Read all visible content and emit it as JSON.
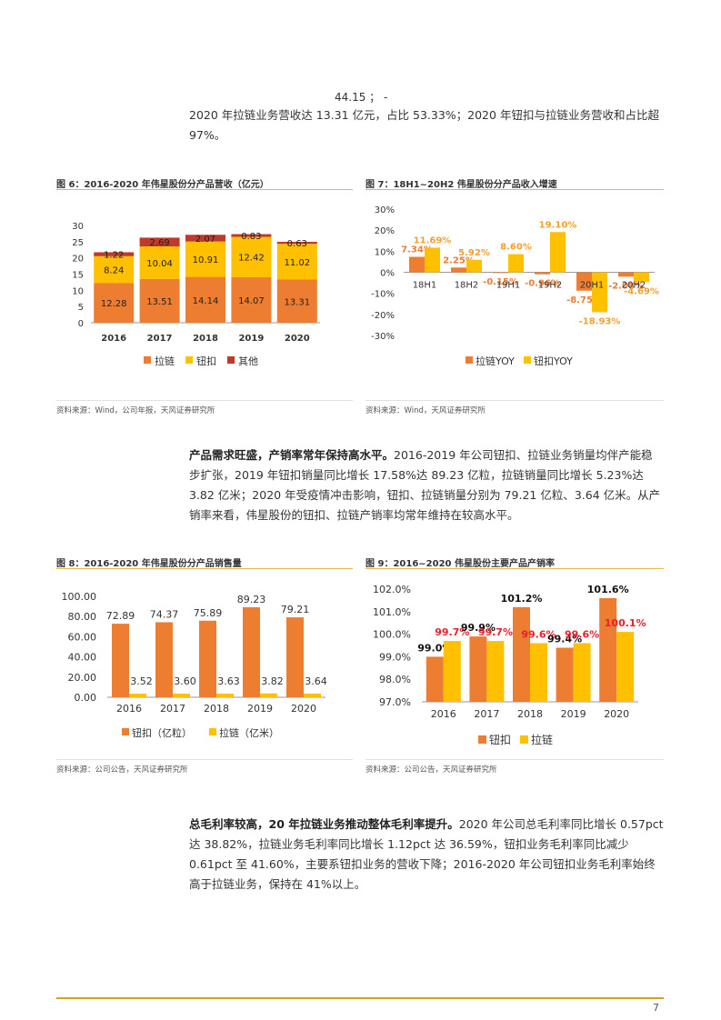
{
  "top_fragment": "44.15 ；    -",
  "intro_text": "2020 年拉链业务营收达 13.31 亿元，占比 53.33%；2020 年钮扣与拉链业务营收和占比超 97%。",
  "section2": {
    "bold": "产品需求旺盛，产销率常年保持高水平。",
    "text": "2016-2019 年公司钮扣、拉链业务销量均伴产能稳步扩张，2019 年钮扣销量同比增长 17.58%达 89.23 亿粒，拉链销量同比增长 5.23%达 3.82 亿米；2020 年受疫情冲击影响，钮扣、拉链销量分别为 79.21 亿粒、3.64 亿米。从产销率来看，伟星股份的钮扣、拉链产销率均常年维持在较高水平。"
  },
  "section3": {
    "bold": "总毛利率较高，20 年拉链业务推动整体毛利率提升。",
    "text": "2020 年公司总毛利率同比增长 0.57pct 达 38.82%，拉链业务毛利率同比增长 1.12pct 达 36.59%，钮扣业务毛利率同比减少 0.61pct 至 41.60%，主要系钮扣业务的营收下降；2016-2020 年公司钮扣业务毛利率始终高于拉链业务，保持在 41%以上。"
  },
  "colors": {
    "orange": "#ED7D31",
    "yellow": "#FFC000",
    "red": "#C0392B",
    "gold_line": "#E8B74A"
  },
  "figures": [
    {
      "title": "图 6：2016-2020 年伟星股份分产品营收（亿元）",
      "source": "资料来源：Wind，公司年报，天风证券研究所",
      "chart_data": {
        "type": "bar",
        "stacked": true,
        "categories": [
          "2016",
          "2017",
          "2018",
          "2019",
          "2020"
        ],
        "series": [
          {
            "name": "拉链",
            "values": [
              12.28,
              13.51,
              14.14,
              14.07,
              13.31
            ],
            "labels": [
              "12.28",
              "13.51",
              "14.14",
              "14.07",
              "13.31"
            ]
          },
          {
            "name": "钮扣",
            "values": [
              8.24,
              10.04,
              10.91,
              12.42,
              11.02
            ],
            "labels": [
              "8.24",
              "10.04",
              "10.91",
              "12.42",
              "11.02"
            ]
          },
          {
            "name": "其他",
            "values": [
              1.22,
              2.69,
              2.07,
              0.83,
              0.63
            ],
            "labels": [
              "1.22",
              "2.69",
              "2.07",
              "0.83",
              "0.63"
            ]
          }
        ],
        "yticks": [
          "0",
          "5",
          "10",
          "15",
          "20",
          "25",
          "30"
        ],
        "ylim": [
          0,
          30
        ],
        "legend_position": "bottom"
      }
    },
    {
      "title": "图 7：18H1~20H2 伟星股份分产品收入增速",
      "source": "资料来源：Wind，天风证券研究所",
      "chart_data": {
        "type": "bar",
        "categories": [
          "18H1",
          "18H2",
          "19H1",
          "19H2",
          "20H1",
          "20H2"
        ],
        "series": [
          {
            "name": "拉链YOY",
            "values": [
              7.34,
              2.25,
              -0.15,
              -0.96,
              -8.75,
              -2.08
            ],
            "labels": [
              "7.34%",
              "2.25%",
              "-0.15%",
              "-0.96%",
              "-8.75%",
              "-2.08%"
            ]
          },
          {
            "name": "钮扣YOY",
            "values": [
              11.69,
              5.92,
              8.6,
              19.1,
              -18.93,
              -4.69
            ],
            "labels": [
              "11.69%",
              "5.92%",
              "8.60%",
              "19.10%",
              "-18.93%",
              "-4.69%"
            ]
          }
        ],
        "yticks": [
          "30%",
          "20%",
          "10%",
          "0%",
          "-10%",
          "-20%",
          "-30%"
        ],
        "ylim": [
          -30,
          30
        ],
        "legend_position": "bottom"
      }
    },
    {
      "title": "图 8：2016-2020 年伟星股份分产品销售量",
      "source": "资料来源：公司公告，天风证券研究所",
      "chart_data": {
        "type": "bar",
        "categories": [
          "2016",
          "2017",
          "2018",
          "2019",
          "2020"
        ],
        "series": [
          {
            "name": "钮扣（亿粒）",
            "values": [
              72.89,
              74.37,
              75.89,
              89.23,
              79.21
            ],
            "labels": [
              "72.89",
              "74.37",
              "75.89",
              "89.23",
              "79.21"
            ]
          },
          {
            "name": "拉链（亿米）",
            "values": [
              3.52,
              3.6,
              3.63,
              3.82,
              3.64
            ],
            "labels": [
              "3.52",
              "3.60",
              "3.63",
              "3.82",
              "3.64"
            ]
          }
        ],
        "yticks": [
          "0.00",
          "20.00",
          "40.00",
          "60.00",
          "80.00",
          "100.00"
        ],
        "ylim": [
          0,
          100
        ],
        "legend_position": "bottom"
      }
    },
    {
      "title": "图 9：2016~2020 伟星股份主要产品产销率",
      "source": "资料来源：公司公告，天风证券研究所",
      "chart_data": {
        "type": "bar",
        "categories": [
          "2016",
          "2017",
          "2018",
          "2019",
          "2020"
        ],
        "series": [
          {
            "name": "钮扣",
            "values": [
              99.0,
              99.9,
              101.2,
              99.4,
              101.6
            ],
            "labels": [
              "99.0%",
              "99.9%",
              "101.2%",
              "99.4%",
              "101.6%"
            ]
          },
          {
            "name": "拉链",
            "values": [
              99.7,
              99.7,
              99.6,
              99.6,
              100.1
            ],
            "labels": [
              "99.7%",
              "99.7%",
              "99.6%",
              "99.6%",
              "100.1%"
            ]
          }
        ],
        "yticks": [
          "97.0%",
          "98.0%",
          "99.0%",
          "100.0%",
          "101.0%",
          "102.0%"
        ],
        "ylim": [
          97,
          102
        ],
        "legend_position": "bottom"
      }
    }
  ],
  "page_number": "7"
}
